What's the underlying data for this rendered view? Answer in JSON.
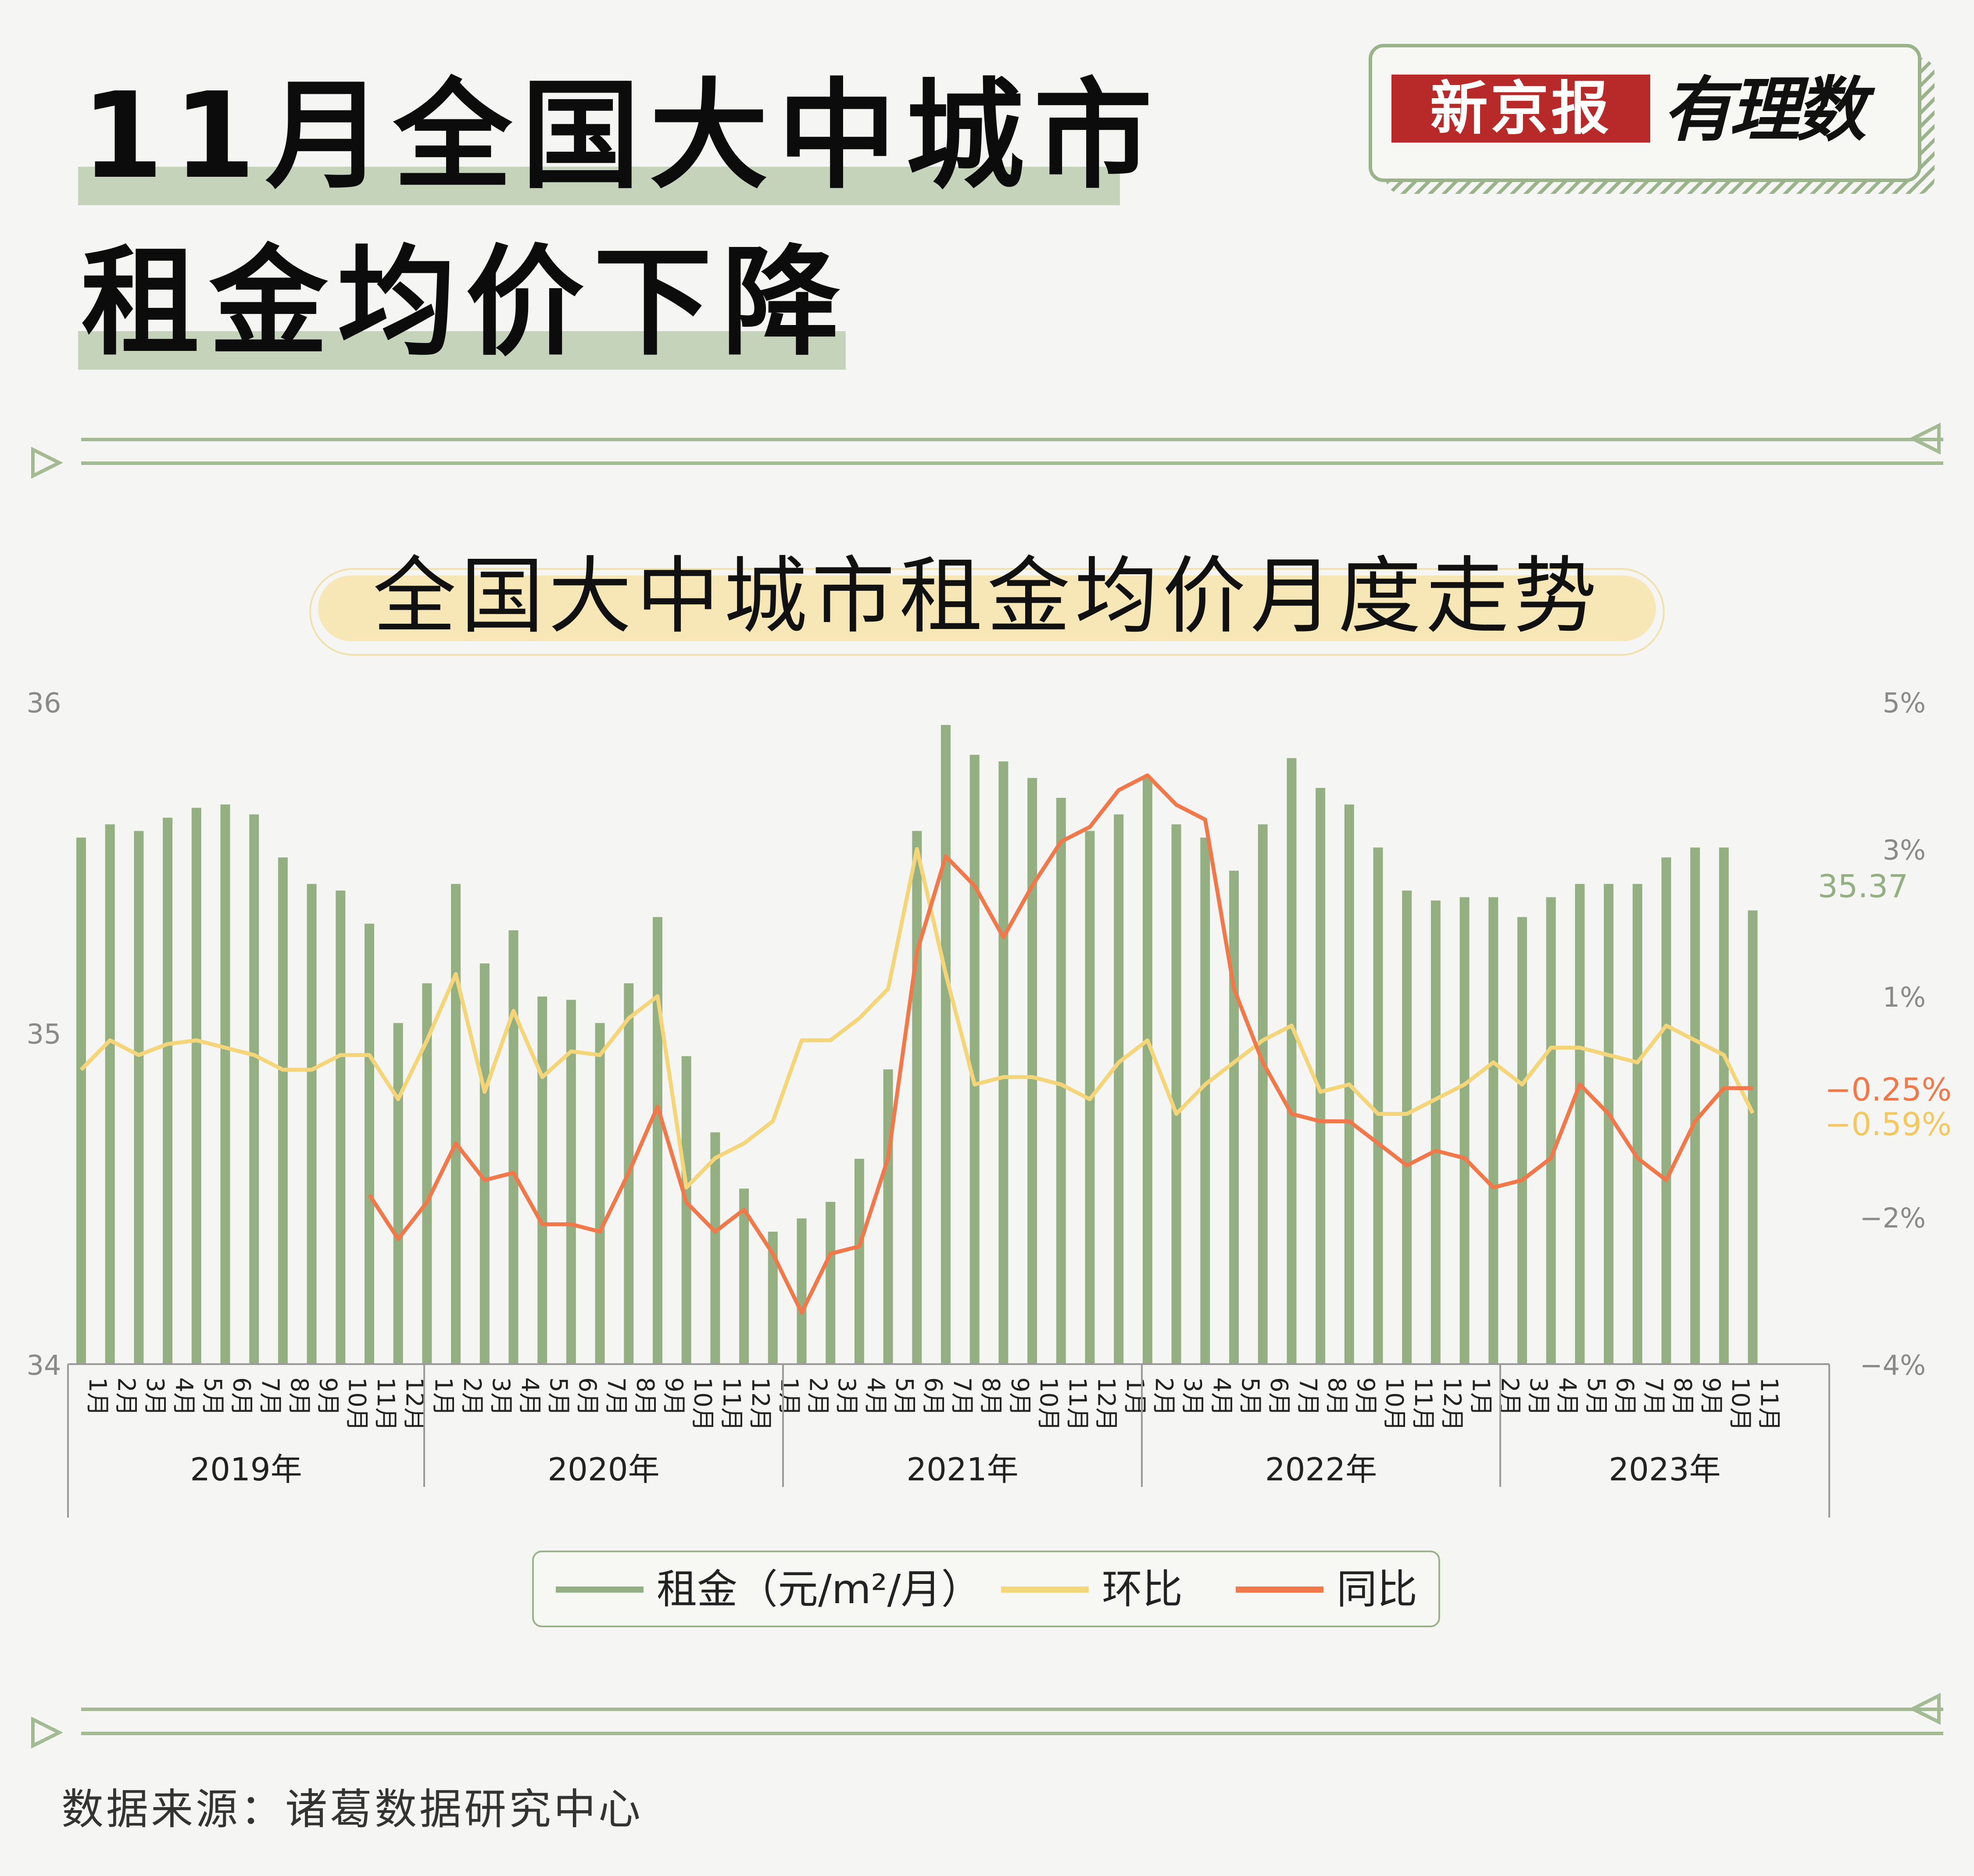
{
  "title": {
    "line1": "11月全国大中城市",
    "line2": "租金均价下降"
  },
  "logo": {
    "brand": "新京报",
    "column": "有理数"
  },
  "subtitle": "全国大中城市租金均价月度走势",
  "source": "数据来源：诸葛数据研究中心",
  "legend": {
    "rent": "租金（元/m²/月）",
    "mom": "环比",
    "yoy": "同比"
  },
  "colors": {
    "rent": "#94b083",
    "mom": "#f5d57a",
    "yoy": "#f0784a",
    "axis": "#555555"
  },
  "chart_data": {
    "type": "bar",
    "ylim_left": [
      34,
      36
    ],
    "yticks_left": [
      "36",
      "35",
      "34"
    ],
    "ylim_right": [
      -4,
      5
    ],
    "yticks_right": [
      "5%",
      "3%",
      "1%",
      "-2%",
      "-4%"
    ],
    "year_labels": [
      "2019年",
      "2020年",
      "2021年",
      "2022年",
      "2023年"
    ],
    "end_labels": {
      "rent": "35.37",
      "yoy": "-0.25%",
      "mom": "-0.59%"
    },
    "months": [
      {
        "label": "1月",
        "rent": 35.59,
        "mom": 0.0,
        "yoy": null
      },
      {
        "label": "2月",
        "rent": 35.63,
        "mom": 0.4,
        "yoy": null
      },
      {
        "label": "3月",
        "rent": 35.61,
        "mom": 0.2,
        "yoy": null
      },
      {
        "label": "4月",
        "rent": 35.65,
        "mom": 0.35,
        "yoy": null
      },
      {
        "label": "5月",
        "rent": 35.68,
        "mom": 0.4,
        "yoy": null
      },
      {
        "label": "6月",
        "rent": 35.69,
        "mom": 0.3,
        "yoy": null
      },
      {
        "label": "7月",
        "rent": 35.66,
        "mom": 0.2,
        "yoy": null
      },
      {
        "label": "8月",
        "rent": 35.53,
        "mom": 0.0,
        "yoy": null
      },
      {
        "label": "9月",
        "rent": 35.45,
        "mom": 0.0,
        "yoy": null
      },
      {
        "label": "10月",
        "rent": 35.43,
        "mom": 0.2,
        "yoy": null
      },
      {
        "label": "11月",
        "rent": 35.33,
        "mom": 0.2,
        "yoy": -1.7
      },
      {
        "label": "12月",
        "rent": 35.03,
        "mom": -0.4,
        "yoy": -2.3
      },
      {
        "label": "1月",
        "rent": 35.15,
        "mom": 0.4,
        "yoy": -1.8
      },
      {
        "label": "2月",
        "rent": 35.45,
        "mom": 1.3,
        "yoy": -1.0
      },
      {
        "label": "3月",
        "rent": 35.21,
        "mom": -0.3,
        "yoy": -1.5
      },
      {
        "label": "4月",
        "rent": 35.31,
        "mom": 0.8,
        "yoy": -1.4
      },
      {
        "label": "5月",
        "rent": 35.11,
        "mom": -0.1,
        "yoy": -2.1
      },
      {
        "label": "6月",
        "rent": 35.1,
        "mom": 0.25,
        "yoy": -2.1
      },
      {
        "label": "7月",
        "rent": 35.03,
        "mom": 0.2,
        "yoy": -2.2
      },
      {
        "label": "8月",
        "rent": 35.15,
        "mom": 0.7,
        "yoy": -1.4
      },
      {
        "label": "9月",
        "rent": 35.35,
        "mom": 1.0,
        "yoy": -0.5
      },
      {
        "label": "10月",
        "rent": 34.93,
        "mom": -1.6,
        "yoy": -1.8
      },
      {
        "label": "11月",
        "rent": 34.7,
        "mom": -1.2,
        "yoy": -2.2
      },
      {
        "label": "12月",
        "rent": 34.53,
        "mom": -1.0,
        "yoy": -1.9
      },
      {
        "label": "1月",
        "rent": 34.4,
        "mom": -0.7,
        "yoy": -2.5
      },
      {
        "label": "2月",
        "rent": 34.44,
        "mom": 0.4,
        "yoy": -3.3
      },
      {
        "label": "3月",
        "rent": 34.49,
        "mom": 0.4,
        "yoy": -2.5
      },
      {
        "label": "4月",
        "rent": 34.62,
        "mom": 0.7,
        "yoy": -2.4
      },
      {
        "label": "5月",
        "rent": 34.89,
        "mom": 1.1,
        "yoy": -1.2
      },
      {
        "label": "6月",
        "rent": 35.61,
        "mom": 3.0,
        "yoy": 1.6
      },
      {
        "label": "7月",
        "rent": 35.93,
        "mom": 1.3,
        "yoy": 2.9
      },
      {
        "label": "8月",
        "rent": 35.84,
        "mom": -0.2,
        "yoy": 2.5
      },
      {
        "label": "9月",
        "rent": 35.82,
        "mom": -0.1,
        "yoy": 1.8
      },
      {
        "label": "10月",
        "rent": 35.77,
        "mom": -0.1,
        "yoy": 2.5
      },
      {
        "label": "11月",
        "rent": 35.71,
        "mom": -0.2,
        "yoy": 3.1
      },
      {
        "label": "12月",
        "rent": 35.61,
        "mom": -0.4,
        "yoy": 3.3
      },
      {
        "label": "1月",
        "rent": 35.66,
        "mom": 0.1,
        "yoy": 3.8
      },
      {
        "label": "2月",
        "rent": 35.77,
        "mom": 0.4,
        "yoy": 4.0
      },
      {
        "label": "3月",
        "rent": 35.63,
        "mom": -0.6,
        "yoy": 3.6
      },
      {
        "label": "4月",
        "rent": 35.59,
        "mom": -0.2,
        "yoy": 3.4
      },
      {
        "label": "5月",
        "rent": 35.49,
        "mom": 0.1,
        "yoy": 1.1
      },
      {
        "label": "6月",
        "rent": 35.63,
        "mom": 0.4,
        "yoy": 0.1
      },
      {
        "label": "7月",
        "rent": 35.83,
        "mom": 0.6,
        "yoy": -0.6
      },
      {
        "label": "8月",
        "rent": 35.74,
        "mom": -0.3,
        "yoy": -0.7
      },
      {
        "label": "9月",
        "rent": 35.69,
        "mom": -0.2,
        "yoy": -0.7
      },
      {
        "label": "10月",
        "rent": 35.56,
        "mom": -0.6,
        "yoy": -1.0
      },
      {
        "label": "11月",
        "rent": 35.43,
        "mom": -0.6,
        "yoy": -1.3
      },
      {
        "label": "12月",
        "rent": 35.4,
        "mom": -0.4,
        "yoy": -1.1
      },
      {
        "label": "1月",
        "rent": 35.41,
        "mom": -0.2,
        "yoy": -1.2
      },
      {
        "label": "2月",
        "rent": 35.41,
        "mom": 0.1,
        "yoy": -1.6
      },
      {
        "label": "3月",
        "rent": 35.35,
        "mom": -0.2,
        "yoy": -1.5
      },
      {
        "label": "4月",
        "rent": 35.41,
        "mom": 0.3,
        "yoy": -1.2
      },
      {
        "label": "5月",
        "rent": 35.45,
        "mom": 0.3,
        "yoy": -0.2
      },
      {
        "label": "6月",
        "rent": 35.45,
        "mom": 0.2,
        "yoy": -0.6
      },
      {
        "label": "7月",
        "rent": 35.45,
        "mom": 0.1,
        "yoy": -1.2
      },
      {
        "label": "8月",
        "rent": 35.53,
        "mom": 0.6,
        "yoy": -1.5
      },
      {
        "label": "9月",
        "rent": 35.56,
        "mom": 0.4,
        "yoy": -0.7
      },
      {
        "label": "10月",
        "rent": 35.56,
        "mom": 0.2,
        "yoy": -0.25
      },
      {
        "label": "11月",
        "rent": 35.37,
        "mom": -0.59,
        "yoy": -0.25
      }
    ]
  }
}
